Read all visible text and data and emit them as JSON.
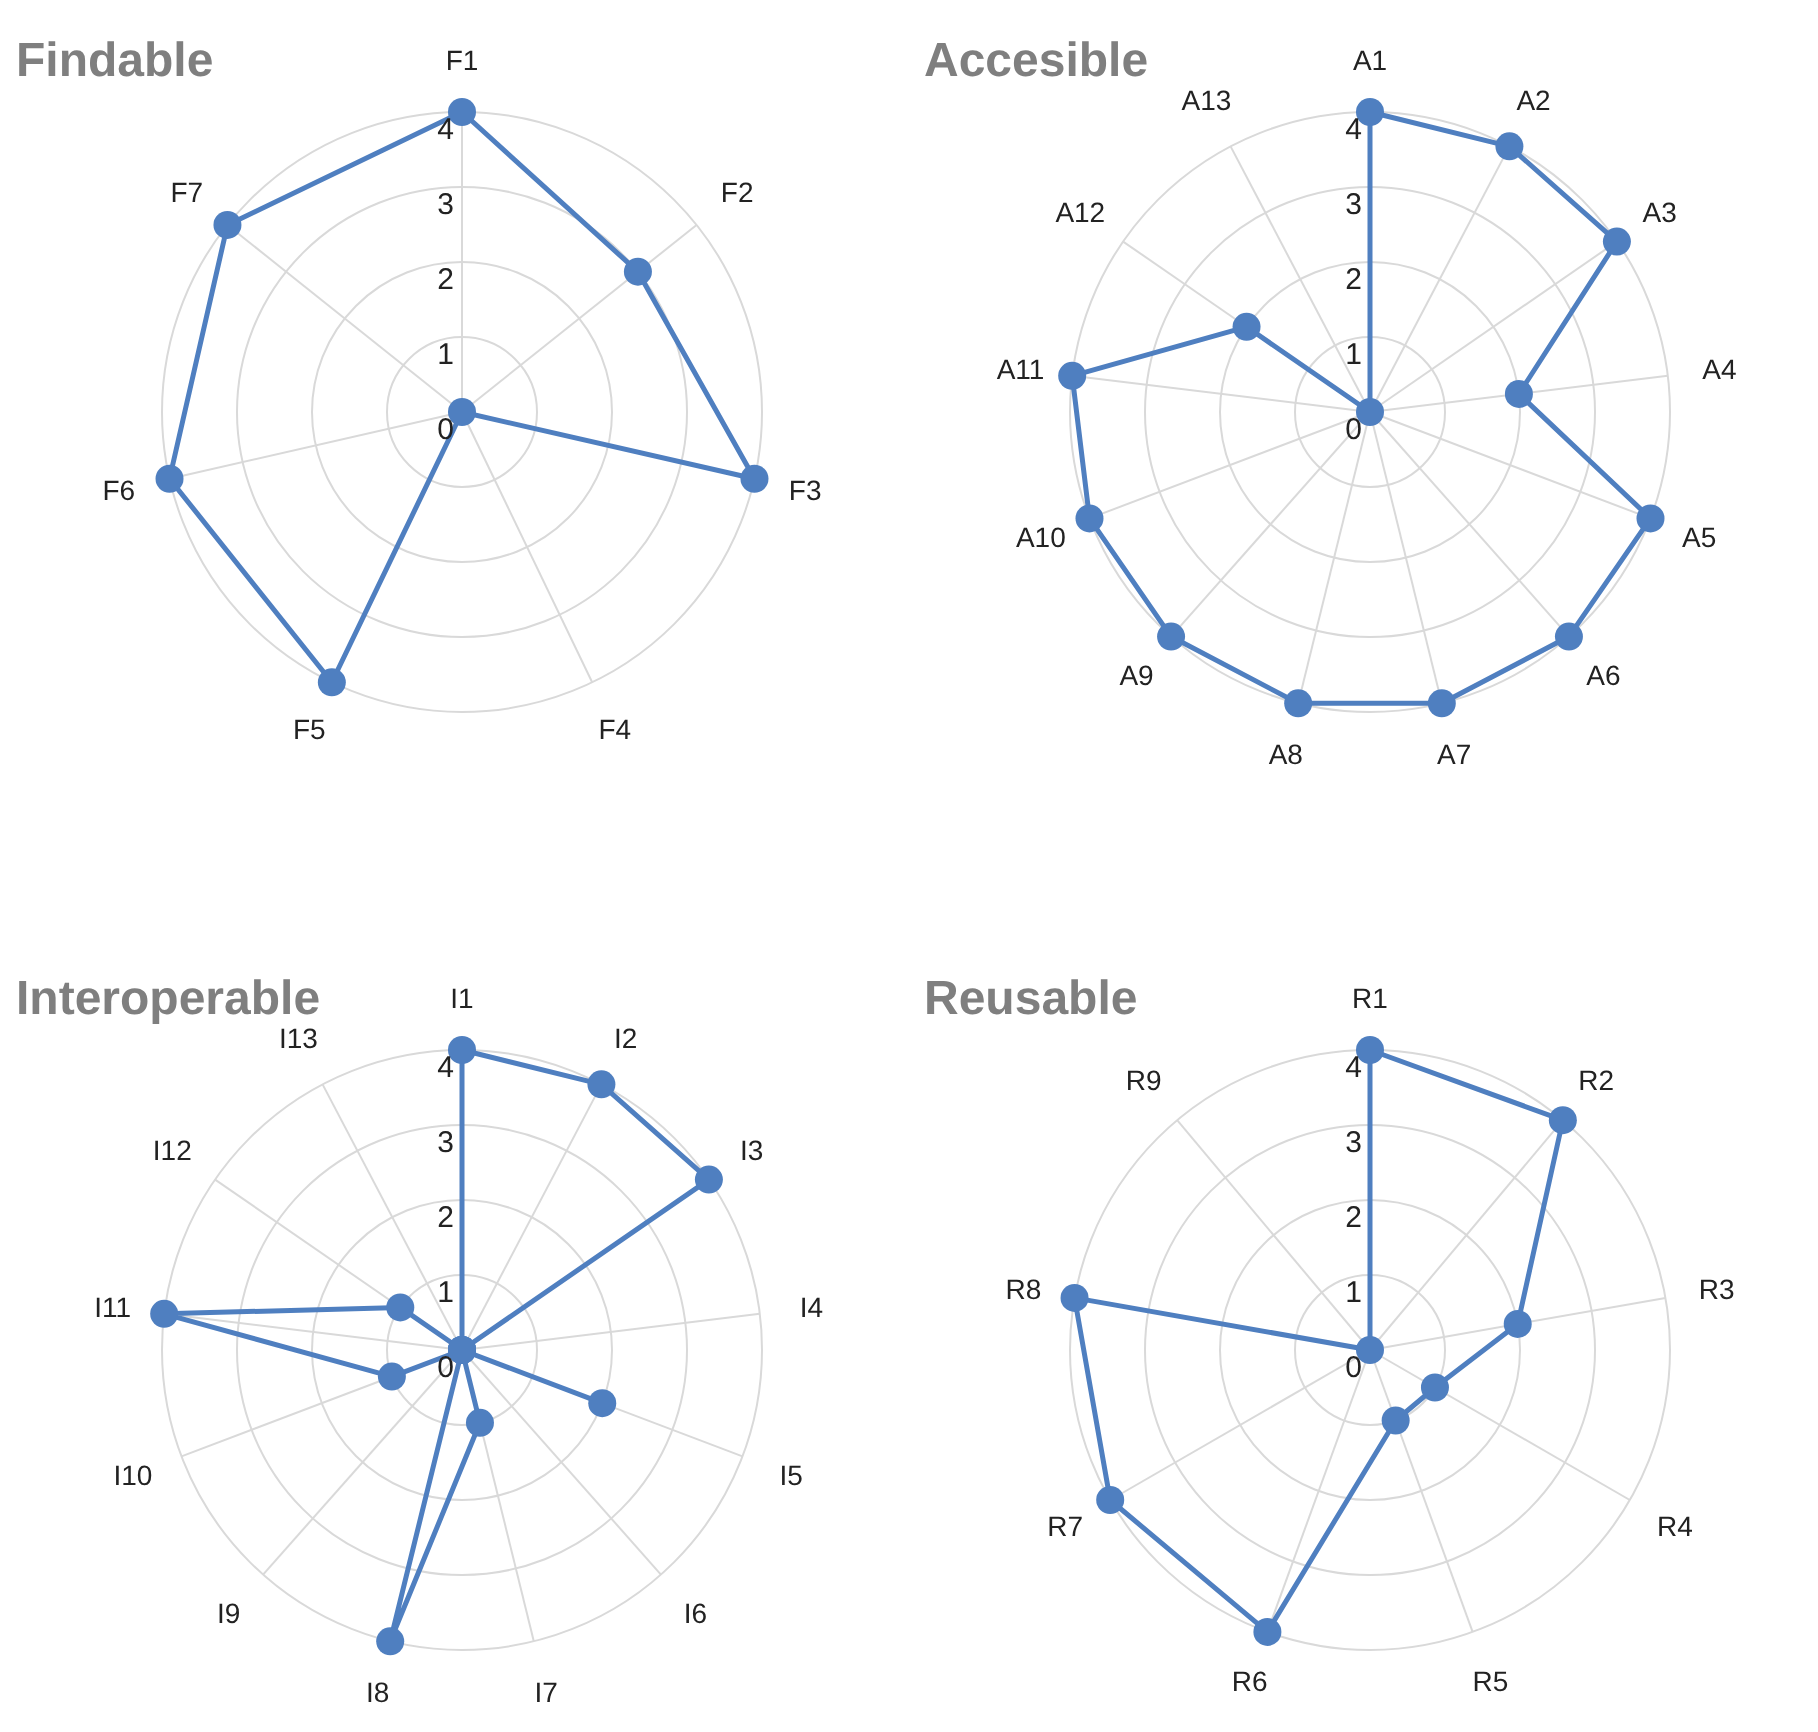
{
  "chart_data": [
    {
      "type": "radar",
      "title": "Findable",
      "categories": [
        "F1",
        "F2",
        "F3",
        "F4",
        "F5",
        "F6",
        "F7"
      ],
      "series": [
        {
          "color": "#4f7fc0",
          "values": [
            4,
            3,
            4,
            0,
            4,
            4,
            4
          ]
        }
      ],
      "ylim": [
        0,
        4
      ],
      "yticks": [
        0,
        1,
        2,
        3,
        4
      ],
      "grid": true,
      "marker": "circle"
    },
    {
      "type": "radar",
      "title": "Accesible",
      "categories": [
        "A1",
        "A2",
        "A3",
        "A4",
        "A5",
        "A6",
        "A7",
        "A8",
        "A9",
        "A10",
        "A11",
        "A12",
        "A13"
      ],
      "series": [
        {
          "color": "#4f7fc0",
          "values": [
            4,
            4,
            4,
            2,
            4,
            4,
            4,
            4,
            4,
            4,
            4,
            2,
            0
          ]
        }
      ],
      "ylim": [
        0,
        4
      ],
      "yticks": [
        0,
        1,
        2,
        3,
        4
      ],
      "grid": true,
      "marker": "circle"
    },
    {
      "type": "radar",
      "title": "Interoperable",
      "categories": [
        "I1",
        "I2",
        "I3",
        "I4",
        "I5",
        "I6",
        "I7",
        "I8",
        "I9",
        "I10",
        "I11",
        "I12",
        "I13"
      ],
      "series": [
        {
          "color": "#4f7fc0",
          "values": [
            4,
            4,
            4,
            0,
            2,
            0,
            1,
            4,
            0,
            1,
            4,
            1,
            0
          ]
        }
      ],
      "ylim": [
        0,
        4
      ],
      "yticks": [
        0,
        1,
        2,
        3,
        4
      ],
      "grid": true,
      "marker": "circle"
    },
    {
      "type": "radar",
      "title": "Reusable",
      "categories": [
        "R1",
        "R2",
        "R3",
        "R4",
        "R5",
        "R6",
        "R7",
        "R8",
        "R9"
      ],
      "series": [
        {
          "color": "#4f7fc0",
          "values": [
            4,
            4,
            2,
            1,
            1,
            4,
            4,
            4,
            0
          ]
        }
      ],
      "ylim": [
        0,
        4
      ],
      "yticks": [
        0,
        1,
        2,
        3,
        4
      ],
      "grid": true,
      "marker": "circle"
    }
  ]
}
